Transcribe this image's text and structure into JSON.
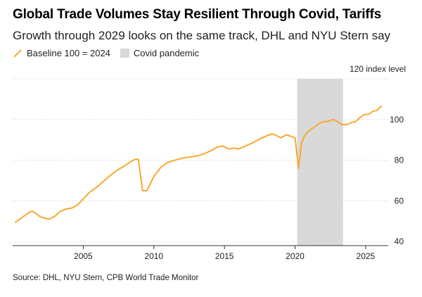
{
  "header": {
    "title": "Global Trade Volumes Stay Resilient Through Covid, Tariffs",
    "subtitle": "Growth through 2029 looks on the same track, DHL and NYU Stern say"
  },
  "legend": {
    "series_label": "Baseline 100 = 2024",
    "shade_label": "Covid pandemic"
  },
  "colors": {
    "line": "#F9A830",
    "shade": "#D9D9D9",
    "grid": "#D4D4D4",
    "axis": "#333333",
    "text": "#222222"
  },
  "source": "Source: DHL, NYU Stern, CPB World Trade Monitor",
  "chart_data": {
    "type": "line",
    "title": "Global Trade Volumes Stay Resilient Through Covid, Tariffs",
    "subtitle": "Growth through 2029 looks on the same track, DHL and NYU Stern say",
    "ylabel": "index level",
    "y_top_label": "120 index level",
    "xlim": [
      2000.0,
      2026.6
    ],
    "ylim": [
      38,
      120
    ],
    "yticks": [
      40,
      60,
      80,
      100
    ],
    "ytick_labels": [
      "40",
      "60",
      "80",
      "100"
    ],
    "xticks": [
      2005,
      2010,
      2015,
      2020,
      2025
    ],
    "xtick_labels": [
      "2005",
      "2010",
      "2015",
      "2020",
      "2025"
    ],
    "shaded_region": {
      "label": "Covid pandemic",
      "from": 2020.15,
      "to": 2023.4
    },
    "series": [
      {
        "name": "Baseline 100 = 2024",
        "x": [
          2000.2,
          2000.5,
          2000.9,
          2001.2,
          2001.4,
          2001.7,
          2002.0,
          2002.3,
          2002.6,
          2003.0,
          2003.4,
          2003.8,
          2004.2,
          2004.6,
          2005.0,
          2005.5,
          2006.0,
          2006.5,
          2007.0,
          2007.5,
          2008.0,
          2008.4,
          2008.7,
          2008.9,
          2009.2,
          2009.5,
          2010.0,
          2010.5,
          2011.0,
          2011.5,
          2012.0,
          2012.5,
          2013.0,
          2013.5,
          2014.0,
          2014.5,
          2014.9,
          2015.3,
          2015.7,
          2016.0,
          2016.5,
          2017.0,
          2017.5,
          2018.0,
          2018.4,
          2018.7,
          2019.0,
          2019.4,
          2019.8,
          2020.0,
          2020.25,
          2020.45,
          2020.6,
          2020.8,
          2021.0,
          2021.3,
          2021.7,
          2022.0,
          2022.3,
          2022.7,
          2023.0,
          2023.3,
          2023.7,
          2024.0,
          2024.3,
          2024.6,
          2024.9,
          2025.2,
          2025.5,
          2025.8,
          2026.1
        ],
        "values": [
          49.5,
          51,
          53,
          54.5,
          55,
          53.5,
          52,
          51.5,
          51,
          52.5,
          55,
          56,
          56.5,
          58,
          61,
          64.5,
          67,
          70,
          73,
          75.5,
          77.5,
          79.5,
          80.5,
          80.5,
          65,
          65,
          72,
          76.5,
          79,
          80,
          81,
          81.5,
          82,
          83,
          84.5,
          86.5,
          87,
          85.5,
          86,
          85.5,
          87,
          88.5,
          90.5,
          92,
          93,
          92,
          91,
          92.5,
          91.5,
          91,
          76,
          88,
          91,
          93,
          94.5,
          96,
          98,
          99,
          99,
          100,
          99,
          97.5,
          97.5,
          98.5,
          99,
          101,
          102.5,
          102.5,
          104,
          104.5,
          106.5
        ]
      }
    ]
  }
}
